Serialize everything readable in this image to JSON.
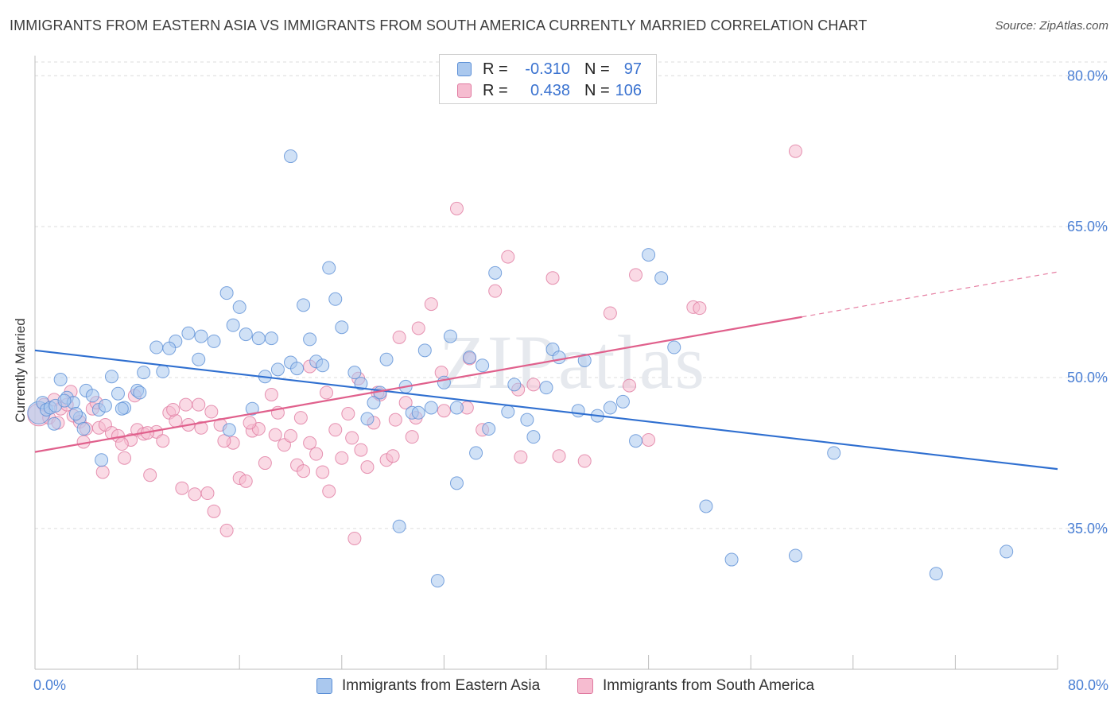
{
  "title": "IMMIGRANTS FROM EASTERN ASIA VS IMMIGRANTS FROM SOUTH AMERICA CURRENTLY MARRIED CORRELATION CHART",
  "source": "Source: ZipAtlas.com",
  "watermark": "ZIPatlas",
  "legend": {
    "r_label": "R =",
    "n_label": "N =",
    "rows": [
      {
        "r": "-0.310",
        "n": "97"
      },
      {
        "r": "0.438",
        "n": "106"
      }
    ]
  },
  "colors": {
    "blue_fill": "#aac8ee",
    "blue_stroke": "#5b8fd6",
    "blue_line": "#2f6fd0",
    "pink_fill": "#f6bcd0",
    "pink_stroke": "#e07aa0",
    "pink_line": "#e0608c",
    "tick_text": "#4a7fd4"
  },
  "chart_data": {
    "type": "scatter",
    "title": "IMMIGRANTS FROM EASTERN ASIA VS IMMIGRANTS FROM SOUTH AMERICA CURRENTLY MARRIED CORRELATION CHART",
    "xlabel": "",
    "ylabel": "Currently Married",
    "xlim": [
      0,
      80
    ],
    "ylim": [
      21,
      82
    ],
    "x_tick_labels": [
      "0.0%",
      "80.0%"
    ],
    "y_ticks": [
      35,
      50,
      65,
      80
    ],
    "y_tick_labels": [
      "35.0%",
      "50.0%",
      "65.0%",
      "80.0%"
    ],
    "grid": true,
    "series": [
      {
        "name": "Immigrants from Eastern Asia",
        "color": "blue",
        "r": -0.31,
        "n": 97,
        "trend": {
          "x": [
            0,
            80
          ],
          "y": [
            52.7,
            40.9
          ],
          "dashed_from": null
        },
        "points": [
          [
            0.3,
            46.5
          ],
          [
            0.6,
            47.5
          ],
          [
            0.9,
            46.8
          ],
          [
            1.2,
            47.0
          ],
          [
            1.6,
            47.2
          ],
          [
            2.0,
            49.8
          ],
          [
            2.5,
            48.0
          ],
          [
            3.0,
            47.5
          ],
          [
            3.5,
            46.0
          ],
          [
            4.0,
            48.7
          ],
          [
            4.5,
            48.2
          ],
          [
            5.0,
            46.8
          ],
          [
            5.5,
            47.2
          ],
          [
            6.0,
            50.1
          ],
          [
            6.5,
            48.4
          ],
          [
            7.0,
            47.0
          ],
          [
            8.0,
            48.7
          ],
          [
            8.5,
            50.5
          ],
          [
            9.5,
            53.0
          ],
          [
            10.0,
            50.6
          ],
          [
            11.0,
            53.6
          ],
          [
            12.0,
            54.4
          ],
          [
            13.0,
            54.1
          ],
          [
            14.0,
            53.6
          ],
          [
            15.0,
            58.4
          ],
          [
            15.5,
            55.2
          ],
          [
            16.0,
            57.0
          ],
          [
            16.5,
            54.3
          ],
          [
            17.5,
            53.9
          ],
          [
            18.0,
            50.1
          ],
          [
            19.0,
            50.8
          ],
          [
            20.0,
            51.5
          ],
          [
            21.0,
            57.2
          ],
          [
            21.5,
            53.8
          ],
          [
            22.0,
            51.6
          ],
          [
            23.0,
            60.9
          ],
          [
            24.0,
            55.0
          ],
          [
            25.0,
            50.5
          ],
          [
            26.0,
            45.9
          ],
          [
            26.5,
            47.5
          ],
          [
            27.5,
            51.8
          ],
          [
            28.5,
            35.2
          ],
          [
            29.0,
            49.1
          ],
          [
            29.5,
            46.5
          ],
          [
            30.5,
            52.7
          ],
          [
            31.0,
            47.0
          ],
          [
            32.0,
            49.5
          ],
          [
            33.0,
            47.0
          ],
          [
            34.0,
            52.0
          ],
          [
            35.0,
            51.2
          ],
          [
            36.0,
            60.4
          ],
          [
            37.0,
            46.6
          ],
          [
            38.5,
            45.8
          ],
          [
            39.0,
            44.1
          ],
          [
            40.5,
            52.8
          ],
          [
            41.0,
            52.0
          ],
          [
            42.5,
            46.7
          ],
          [
            44.0,
            46.2
          ],
          [
            46.0,
            47.6
          ],
          [
            48.0,
            62.2
          ],
          [
            49.0,
            59.9
          ],
          [
            50.0,
            53.0
          ],
          [
            52.5,
            37.2
          ],
          [
            54.5,
            31.9
          ],
          [
            59.5,
            32.3
          ],
          [
            62.5,
            42.5
          ],
          [
            70.5,
            30.5
          ],
          [
            76.0,
            32.7
          ],
          [
            2.3,
            47.7
          ],
          [
            3.8,
            44.9
          ],
          [
            5.2,
            41.8
          ],
          [
            6.8,
            46.9
          ],
          [
            8.2,
            48.5
          ],
          [
            10.5,
            52.9
          ],
          [
            12.8,
            51.8
          ],
          [
            15.2,
            44.8
          ],
          [
            17.0,
            46.9
          ],
          [
            18.5,
            53.9
          ],
          [
            20.5,
            50.9
          ],
          [
            22.5,
            51.2
          ],
          [
            23.5,
            57.8
          ],
          [
            25.5,
            49.4
          ],
          [
            27.0,
            48.5
          ],
          [
            30.0,
            46.5
          ],
          [
            32.5,
            54.1
          ],
          [
            35.5,
            44.9
          ],
          [
            37.5,
            49.3
          ],
          [
            40.0,
            49.0
          ],
          [
            43.0,
            51.7
          ],
          [
            45.0,
            47.0
          ],
          [
            47.0,
            43.7
          ],
          [
            1.5,
            45.4
          ],
          [
            3.2,
            46.4
          ],
          [
            34.5,
            42.5
          ],
          [
            33.0,
            39.5
          ],
          [
            20.0,
            72.0
          ],
          [
            31.5,
            29.8
          ]
        ]
      },
      {
        "name": "Immigrants from South America",
        "color": "pink",
        "r": 0.438,
        "n": 106,
        "trend": {
          "x": [
            0,
            80
          ],
          "y": [
            42.6,
            60.5
          ],
          "dashed_from": 60
        },
        "points": [
          [
            0.3,
            46.3
          ],
          [
            0.7,
            47.3
          ],
          [
            1.1,
            46.0
          ],
          [
            1.5,
            47.8
          ],
          [
            2.0,
            46.9
          ],
          [
            2.5,
            47.3
          ],
          [
            3.0,
            46.2
          ],
          [
            3.5,
            45.6
          ],
          [
            4.0,
            44.9
          ],
          [
            4.5,
            46.9
          ],
          [
            5.0,
            45.0
          ],
          [
            5.5,
            45.3
          ],
          [
            6.0,
            44.5
          ],
          [
            6.5,
            44.2
          ],
          [
            7.0,
            42.0
          ],
          [
            7.5,
            43.8
          ],
          [
            8.0,
            44.8
          ],
          [
            8.5,
            44.4
          ],
          [
            9.0,
            40.3
          ],
          [
            9.5,
            44.6
          ],
          [
            10.0,
            43.7
          ],
          [
            10.5,
            46.5
          ],
          [
            11.0,
            45.7
          ],
          [
            11.5,
            39.0
          ],
          [
            12.0,
            45.3
          ],
          [
            12.5,
            38.4
          ],
          [
            13.0,
            45.0
          ],
          [
            13.5,
            38.5
          ],
          [
            14.0,
            36.7
          ],
          [
            14.5,
            45.3
          ],
          [
            15.0,
            34.8
          ],
          [
            15.5,
            43.5
          ],
          [
            16.0,
            40.0
          ],
          [
            16.5,
            39.7
          ],
          [
            17.0,
            44.7
          ],
          [
            17.5,
            44.9
          ],
          [
            18.0,
            41.5
          ],
          [
            18.5,
            48.3
          ],
          [
            19.0,
            46.5
          ],
          [
            19.5,
            43.3
          ],
          [
            20.0,
            44.2
          ],
          [
            20.5,
            41.3
          ],
          [
            21.0,
            40.7
          ],
          [
            21.5,
            43.5
          ],
          [
            22.0,
            42.4
          ],
          [
            22.5,
            40.6
          ],
          [
            23.0,
            38.7
          ],
          [
            23.5,
            44.8
          ],
          [
            24.0,
            42.0
          ],
          [
            24.5,
            46.4
          ],
          [
            25.0,
            34.0
          ],
          [
            25.5,
            42.8
          ],
          [
            26.0,
            41.1
          ],
          [
            26.5,
            45.5
          ],
          [
            27.0,
            48.3
          ],
          [
            27.5,
            41.8
          ],
          [
            28.0,
            42.2
          ],
          [
            28.5,
            54.0
          ],
          [
            29.0,
            47.5
          ],
          [
            29.5,
            44.1
          ],
          [
            30.0,
            54.9
          ],
          [
            31.0,
            57.3
          ],
          [
            32.0,
            46.7
          ],
          [
            33.0,
            66.8
          ],
          [
            34.0,
            51.9
          ],
          [
            35.0,
            44.8
          ],
          [
            36.0,
            58.6
          ],
          [
            37.0,
            62.0
          ],
          [
            38.0,
            42.1
          ],
          [
            39.0,
            49.3
          ],
          [
            40.5,
            59.9
          ],
          [
            41.0,
            42.2
          ],
          [
            43.0,
            41.7
          ],
          [
            45.0,
            56.4
          ],
          [
            47.0,
            60.2
          ],
          [
            48.0,
            43.8
          ],
          [
            51.5,
            57.0
          ],
          [
            52.0,
            56.9
          ],
          [
            59.5,
            72.5
          ],
          [
            1.8,
            45.5
          ],
          [
            3.8,
            43.6
          ],
          [
            5.3,
            40.6
          ],
          [
            6.8,
            43.4
          ],
          [
            8.8,
            44.5
          ],
          [
            10.8,
            46.8
          ],
          [
            12.8,
            47.3
          ],
          [
            14.8,
            43.7
          ],
          [
            16.8,
            45.5
          ],
          [
            18.8,
            44.3
          ],
          [
            20.8,
            46.0
          ],
          [
            22.8,
            48.5
          ],
          [
            24.8,
            44.0
          ],
          [
            26.8,
            48.5
          ],
          [
            29.8,
            46.0
          ],
          [
            31.8,
            50.5
          ],
          [
            33.8,
            47.0
          ],
          [
            37.8,
            48.8
          ],
          [
            46.5,
            49.2
          ],
          [
            2.8,
            48.6
          ],
          [
            4.8,
            47.5
          ],
          [
            7.8,
            48.2
          ],
          [
            11.8,
            47.3
          ],
          [
            13.8,
            46.6
          ],
          [
            21.5,
            51.1
          ],
          [
            25.3,
            49.9
          ],
          [
            28.2,
            45.8
          ]
        ]
      }
    ]
  },
  "bottom_legend": [
    {
      "label": "Immigrants from Eastern Asia"
    },
    {
      "label": "Immigrants from South America"
    }
  ]
}
